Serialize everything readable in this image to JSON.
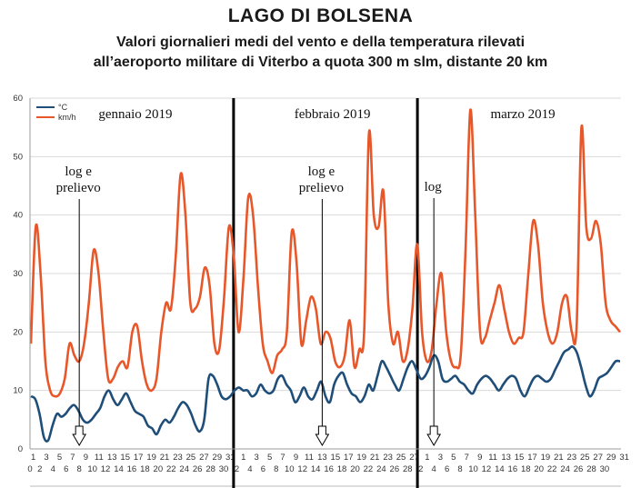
{
  "header": {
    "title": "LAGO DI BOLSENA",
    "subtitle_line1": "Valori giornalieri medi del vento e della temperatura rilevati",
    "subtitle_line2": "all’aeroporto militare di Viterbo a quota 300 m slm, distante 20 km"
  },
  "colors": {
    "temperature": "#1f4e79",
    "wind": "#e8572a",
    "grid": "#d9d9d9",
    "divider": "#000000"
  },
  "chart_data": {
    "type": "line",
    "y_ticks": [
      "0",
      "10",
      "20",
      "30",
      "40",
      "50",
      "60"
    ],
    "ylim": [
      0,
      60
    ],
    "grid": true,
    "legend_placement": "top-left",
    "month_labels": [
      "gennaio 2019",
      "febbraio 2019",
      "marzo 2019"
    ],
    "x_tick_rows": {
      "row1": [
        "1",
        "3",
        "5",
        "7",
        "9",
        "11",
        "13",
        "15",
        "17",
        "19",
        "21",
        "23",
        "25",
        "27",
        "29",
        "31",
        "1",
        "3",
        "5",
        "7",
        "9",
        "11",
        "13",
        "15",
        "17",
        "19",
        "21",
        "23",
        "25",
        "27",
        "1",
        "3",
        "5",
        "7",
        "9",
        "11",
        "13",
        "15",
        "17",
        "19",
        "21",
        "23",
        "25",
        "27",
        "29",
        "31"
      ],
      "row2": [
        "2",
        "4",
        "6",
        "8",
        "10",
        "12",
        "14",
        "16",
        "18",
        "20",
        "22",
        "24",
        "26",
        "28",
        "30",
        "2",
        "4",
        "6",
        "8",
        "10",
        "12",
        "14",
        "16",
        "18",
        "20",
        "22",
        "24",
        "26",
        "28",
        "2",
        "4",
        "6",
        "8",
        "10",
        "12",
        "14",
        "16",
        "18",
        "20",
        "22",
        "24",
        "26",
        "28",
        "30"
      ]
    },
    "annotations": [
      {
        "day": 8,
        "label_lines": [
          "log e",
          "prelievo"
        ]
      },
      {
        "day": 45,
        "label_lines": [
          "log e",
          "prelievo"
        ]
      },
      {
        "day": 62,
        "label_lines": [
          "log"
        ]
      }
    ],
    "series": [
      {
        "name": "°C",
        "color": "#1f4e79",
        "values": [
          9,
          8.5,
          6,
          2,
          1.5,
          4,
          6,
          5.5,
          6,
          7,
          7.5,
          6.5,
          5,
          4.5,
          5,
          6,
          7,
          9,
          10,
          8.5,
          7.5,
          8.5,
          9.5,
          8,
          6.5,
          6,
          5.5,
          4,
          3.5,
          2.5,
          4,
          5,
          4.5,
          5.5,
          7,
          8,
          7.5,
          6,
          4,
          3,
          5,
          12,
          12.5,
          11,
          9,
          8.5,
          9,
          10,
          10.5,
          10,
          10,
          9,
          9.5,
          11,
          10,
          9.5,
          10,
          12,
          12.5,
          11,
          10,
          8,
          9,
          10.5,
          9,
          8.5,
          10,
          11.5,
          9,
          8,
          11,
          12.5,
          13,
          11,
          9.5,
          9,
          8,
          9,
          11,
          10,
          12.5,
          15,
          14,
          12.5,
          11,
          10,
          12,
          14,
          15,
          13.5,
          12,
          12.5,
          14,
          16,
          15,
          12,
          11.5,
          12,
          12.5,
          11.5,
          11,
          10,
          9.5,
          11,
          12,
          12.5,
          12,
          11,
          10,
          11,
          12,
          12.5,
          12,
          10,
          9,
          10.5,
          12,
          12.5,
          12,
          11.5,
          12,
          13.5,
          15,
          16.5,
          17,
          17.5,
          16.5,
          14,
          11,
          9,
          10,
          12,
          12.5,
          13,
          14,
          15,
          15
        ]
      },
      {
        "name": "km/h",
        "color": "#e8572a",
        "values": [
          18,
          38,
          30,
          15,
          10,
          9,
          9.5,
          12,
          18,
          16,
          15,
          18,
          25,
          34,
          30,
          20,
          12,
          12,
          14,
          15,
          14,
          20,
          21,
          15,
          11,
          10,
          12,
          20,
          25,
          24,
          33,
          47,
          40,
          25,
          24,
          26,
          31,
          28,
          18,
          17,
          26,
          38,
          33,
          20,
          29,
          43,
          40,
          28,
          18,
          15,
          13,
          16,
          17,
          20,
          37,
          32,
          18,
          22,
          26,
          24,
          18,
          20,
          19,
          15,
          14,
          16,
          22,
          14,
          17,
          20,
          54,
          40,
          38,
          44,
          25,
          18,
          20,
          15,
          17,
          24,
          35,
          20,
          15,
          17,
          25,
          30,
          20,
          15,
          14,
          16,
          34,
          58,
          40,
          20,
          19,
          22,
          25,
          28,
          24,
          20,
          18,
          19,
          20,
          30,
          39,
          35,
          25,
          20,
          18,
          20,
          25,
          26,
          20,
          21,
          55,
          38,
          36,
          39,
          35,
          25,
          22,
          21,
          20
        ]
      }
    ]
  }
}
